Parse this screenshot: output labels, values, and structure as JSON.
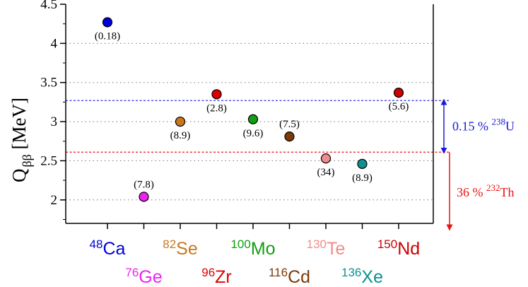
{
  "chart_data": {
    "type": "scatter",
    "ylabel": {
      "main": "Q",
      "sub": "ββ",
      "unit": "[MeV]"
    },
    "ylim": [
      1.7,
      4.5
    ],
    "yticks": [
      "2",
      "2.5",
      "3",
      "3.5",
      "4",
      "4.5"
    ],
    "grid": "horizontal-dotted",
    "points": [
      {
        "mass": "48",
        "element": "Ca",
        "q": 4.27,
        "label": "(0.18)",
        "label_pos": "below",
        "color": "#0000dd",
        "row": 1
      },
      {
        "mass": "76",
        "element": "Ge",
        "q": 2.04,
        "label": "(7.8)",
        "label_pos": "above",
        "color": "#ee22ee",
        "row": 2
      },
      {
        "mass": "82",
        "element": "Se",
        "q": 3.0,
        "label": "(8.9)",
        "label_pos": "below",
        "color": "#c8781e",
        "row": 1
      },
      {
        "mass": "96",
        "element": "Zr",
        "q": 3.35,
        "label": "(2.8)",
        "label_pos": "below",
        "color": "#dd0000",
        "row": 2
      },
      {
        "mass": "100",
        "element": "Mo",
        "q": 3.03,
        "label": "(9.6)",
        "label_pos": "below",
        "color": "#11a011",
        "row": 1
      },
      {
        "mass": "116",
        "element": "Cd",
        "q": 2.81,
        "label": "(7.5)",
        "label_pos": "above",
        "color": "#7a3a0a",
        "row": 2
      },
      {
        "mass": "130",
        "element": "Te",
        "q": 2.53,
        "label": "(34)",
        "label_pos": "below",
        "color": "#f08c8c",
        "row": 1
      },
      {
        "mass": "136",
        "element": "Xe",
        "q": 2.46,
        "label": "(8.9)",
        "label_pos": "below",
        "color": "#0e9090",
        "row": 2
      },
      {
        "mass": "150",
        "element": "Nd",
        "q": 3.37,
        "label": "(5.6)",
        "label_pos": "below",
        "color": "#cc0000",
        "row": 1
      }
    ],
    "reference_lines": [
      {
        "y": 3.27,
        "color": "#1a1ad8",
        "text": "0.15 %",
        "sup": "238",
        "element": "U",
        "direction": "up"
      },
      {
        "y": 2.61,
        "color": "#ee1111",
        "text": "36 %",
        "sup": "232",
        "element": "Th",
        "direction": "down"
      }
    ]
  }
}
